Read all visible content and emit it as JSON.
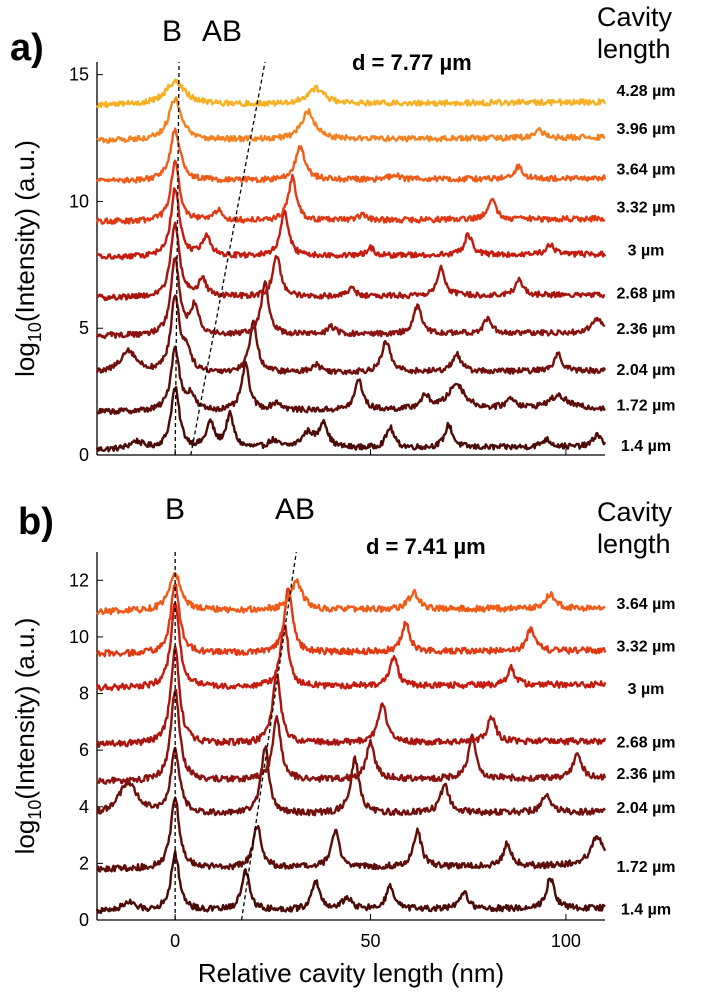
{
  "chart_data": [
    {
      "type": "line",
      "panel": "a)",
      "mode_labels": {
        "b": "B",
        "ab": "AB"
      },
      "annotation": "d = 7.77 µm",
      "header": [
        "Cavity",
        "length"
      ],
      "ylabel_main": "log",
      "ylabel_sub": "10",
      "ylabel_rest": "(Intensity) (a.u.)",
      "xlabel": "",
      "xlim": [
        -20,
        110
      ],
      "ylim": [
        0,
        15.5
      ],
      "yticks": [
        0,
        5,
        10,
        15
      ],
      "b_line": {
        "x": [
          0,
          1
        ],
        "y": [
          0,
          15.5
        ]
      },
      "ab_line": {
        "x": [
          4,
          23
        ],
        "y": [
          0,
          15.5
        ]
      },
      "series": [
        {
          "name": "1.4 µm",
          "color": "#4a0a08",
          "offset": 0.2,
          "label_y": 0.4,
          "peaks": [
            [
              -10,
              0.3,
              2
            ],
            [
              0,
              2.4,
              1.3
            ],
            [
              9,
              1.0,
              1.2
            ],
            [
              14,
              1.3,
              1.2
            ],
            [
              25,
              0.3,
              1.5
            ],
            [
              34,
              0.6,
              2
            ],
            [
              38,
              1.0,
              1.2
            ],
            [
              55,
              0.8,
              1.2
            ],
            [
              70,
              0.9,
              1.2
            ],
            [
              95,
              0.3,
              1.5
            ],
            [
              108,
              0.5,
              1.2
            ]
          ]
        },
        {
          "name": "1.72 µm",
          "color": "#5c0d0a",
          "offset": 1.7,
          "label_y": 2.0,
          "peaks": [
            [
              0,
              2.5,
              1.3
            ],
            [
              4,
              0.6,
              1.2
            ],
            [
              18,
              1.8,
              1.2
            ],
            [
              26,
              0.3,
              1.5
            ],
            [
              47,
              1.2,
              1.2
            ],
            [
              64,
              0.5,
              1.5
            ],
            [
              72,
              1.0,
              2.5
            ],
            [
              86,
              0.4,
              1.5
            ],
            [
              98,
              0.5,
              3
            ]
          ]
        },
        {
          "name": "2.04 µm",
          "color": "#700f0c",
          "offset": 3.2,
          "label_y": 3.4,
          "peaks": [
            [
              -12,
              0.9,
              2.5
            ],
            [
              0,
              3.0,
              1.3
            ],
            [
              3,
              0.8,
              1.2
            ],
            [
              20,
              2.0,
              1.2
            ],
            [
              36,
              0.3,
              1.5
            ],
            [
              54,
              1.2,
              1.3
            ],
            [
              72,
              0.7,
              1.3
            ],
            [
              98,
              0.7,
              1.2
            ]
          ]
        },
        {
          "name": "2.36 µm",
          "color": "#8a1310",
          "offset": 4.7,
          "label_y": 5.0,
          "peaks": [
            [
              0,
              3.0,
              1.3
            ],
            [
              5,
              1.1,
              1.2
            ],
            [
              23,
              2.0,
              1.2
            ],
            [
              40,
              0.3,
              1.2
            ],
            [
              62,
              1.1,
              1.2
            ],
            [
              80,
              0.6,
              1.2
            ],
            [
              108,
              0.6,
              1.5
            ]
          ]
        },
        {
          "name": "2.68 µm",
          "color": "#a8150f",
          "offset": 6.2,
          "label_y": 6.4,
          "peaks": [
            [
              0,
              2.9,
              1.3
            ],
            [
              7,
              0.7,
              1.2
            ],
            [
              26,
              1.6,
              1.2
            ],
            [
              45,
              0.3,
              1.2
            ],
            [
              68,
              1.1,
              1.2
            ],
            [
              88,
              0.6,
              1.2
            ]
          ]
        },
        {
          "name": "3 µm",
          "color": "#c61c0f",
          "offset": 7.8,
          "label_y": 8.1,
          "peaks": [
            [
              0,
              2.7,
              1.3
            ],
            [
              8,
              0.8,
              1.2
            ],
            [
              28,
              1.8,
              1.2
            ],
            [
              50,
              0.3,
              1.2
            ],
            [
              75,
              0.8,
              1.2
            ],
            [
              96,
              0.4,
              1.2
            ]
          ]
        },
        {
          "name": "3.32 µm",
          "color": "#e03a14",
          "offset": 9.2,
          "label_y": 9.8,
          "peaks": [
            [
              0,
              2.4,
              1.3
            ],
            [
              11,
              0.4,
              1.2
            ],
            [
              30,
              1.7,
              1.2
            ],
            [
              48,
              0.2,
              1.2
            ],
            [
              81,
              0.8,
              1.2
            ]
          ]
        },
        {
          "name": "3.64 µm",
          "color": "#ef5c1a",
          "offset": 10.8,
          "label_y": 11.3,
          "peaks": [
            [
              0,
              2.0,
              1.5
            ],
            [
              32,
              1.3,
              1.5
            ],
            [
              56,
              0.2,
              1.2
            ],
            [
              88,
              0.5,
              1.2
            ]
          ]
        },
        {
          "name": "3.96 µm",
          "color": "#f48020",
          "offset": 12.4,
          "label_y": 12.9,
          "peaks": [
            [
              0,
              1.6,
              2
            ],
            [
              34,
              1.1,
              2
            ],
            [
              93,
              0.3,
              1.5
            ]
          ]
        },
        {
          "name": "4.28 µm",
          "color": "#f6b022",
          "offset": 13.8,
          "label_y": 14.4,
          "peaks": [
            [
              0,
              0.9,
              3
            ],
            [
              36,
              0.6,
              2.5
            ]
          ]
        }
      ]
    },
    {
      "type": "line",
      "panel": "b)",
      "mode_labels": {
        "b": "B",
        "ab": "AB"
      },
      "annotation": "d = 7.41 µm",
      "header": [
        "Cavity",
        "length"
      ],
      "ylabel_main": "log",
      "ylabel_sub": "10",
      "ylabel_rest": "(Intensity) (a.u.)",
      "xlabel": "Relative cavity length (nm)",
      "xlim": [
        -20,
        110
      ],
      "ylim": [
        0,
        13
      ],
      "yticks": [
        0,
        2,
        4,
        6,
        8,
        10,
        12
      ],
      "xticks": [
        0,
        50,
        100
      ],
      "b_line": {
        "x": [
          0,
          0
        ],
        "y": [
          0,
          13
        ]
      },
      "ab_line": {
        "x": [
          17,
          31
        ],
        "y": [
          0,
          13
        ]
      },
      "series": [
        {
          "name": "1.4 µm",
          "color": "#4a0a08",
          "offset": 0.3,
          "label_y": 0.4,
          "peaks": [
            [
              -12,
              0.3,
              2
            ],
            [
              0,
              2.0,
              1.3
            ],
            [
              18,
              1.4,
              1.2
            ],
            [
              36,
              1.0,
              1.2
            ],
            [
              44,
              0.4,
              1.5
            ],
            [
              55,
              0.8,
              1.2
            ],
            [
              74,
              0.6,
              1.2
            ],
            [
              96,
              1.1,
              1.2
            ]
          ]
        },
        {
          "name": "1.72 µm",
          "color": "#5c0d0a",
          "offset": 1.8,
          "label_y": 1.9,
          "peaks": [
            [
              0,
              2.5,
              1.3
            ],
            [
              21,
              1.5,
              1.2
            ],
            [
              41,
              1.3,
              1.2
            ],
            [
              62,
              1.3,
              1.2
            ],
            [
              85,
              0.8,
              1.2
            ],
            [
              108,
              1.0,
              2
            ]
          ]
        },
        {
          "name": "2.04 µm",
          "color": "#700f0c",
          "offset": 3.7,
          "label_y": 4.0,
          "peaks": [
            [
              -12,
              1.1,
              3
            ],
            [
              0,
              2.3,
              1.3
            ],
            [
              23,
              2.4,
              1.2
            ],
            [
              46,
              1.9,
              1.3
            ],
            [
              69,
              1.0,
              1.3
            ],
            [
              95,
              0.7,
              1.2
            ]
          ]
        },
        {
          "name": "2.36 µm",
          "color": "#8a1310",
          "offset": 4.9,
          "label_y": 5.2,
          "peaks": [
            [
              0,
              3.2,
              1.3
            ],
            [
              26,
              2.2,
              1.2
            ],
            [
              50,
              1.3,
              1.3
            ],
            [
              76,
              1.5,
              1.2
            ],
            [
              103,
              0.9,
              1.2
            ]
          ]
        },
        {
          "name": "2.68 µm",
          "color": "#a8150f",
          "offset": 6.2,
          "label_y": 6.3,
          "peaks": [
            [
              0,
              3.4,
              1.3
            ],
            [
              26,
              2.5,
              1.2
            ],
            [
              53,
              1.4,
              1.2
            ],
            [
              81,
              0.9,
              1.2
            ]
          ]
        },
        {
          "name": "3 µm",
          "color": "#c61c0f",
          "offset": 8.2,
          "label_y": 8.2,
          "peaks": [
            [
              0,
              3.0,
              1.3
            ],
            [
              28,
              2.2,
              1.2
            ],
            [
              56,
              1.0,
              1.2
            ],
            [
              86,
              0.6,
              1.2
            ]
          ]
        },
        {
          "name": "3.32 µm",
          "color": "#e03a14",
          "offset": 9.4,
          "label_y": 9.7,
          "peaks": [
            [
              0,
              2.5,
              1.3
            ],
            [
              29,
              2.3,
              1.2
            ],
            [
              59,
              1.0,
              1.2
            ],
            [
              91,
              0.8,
              1.2
            ]
          ]
        },
        {
          "name": "3.64 µm",
          "color": "#ef5c1a",
          "offset": 10.9,
          "label_y": 11.2,
          "peaks": [
            [
              0,
              1.3,
              1.8
            ],
            [
              31,
              1.0,
              1.8
            ],
            [
              61,
              0.6,
              1.5
            ],
            [
              96,
              0.5,
              1.5
            ]
          ]
        }
      ]
    }
  ]
}
